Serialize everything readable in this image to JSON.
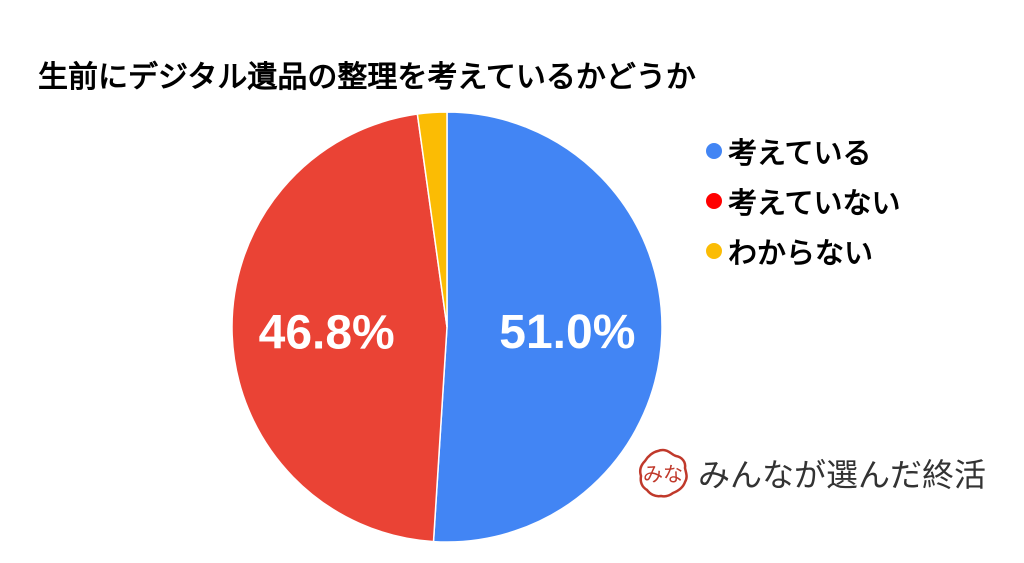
{
  "chart_data": {
    "type": "pie",
    "title": "生前にデジタル遺品の整理を考えているかどうか",
    "categories": [
      "考えている",
      "考えていない",
      "わからない"
    ],
    "values": [
      51.0,
      46.8,
      2.2
    ],
    "data_labels": [
      "51.0%",
      "46.8%",
      ""
    ],
    "colors": [
      "#4285F4",
      "#EA4335",
      "#FBBC04"
    ],
    "legend_colors": [
      "#4285F4",
      "#FF0000",
      "#FBBC04"
    ],
    "start_angle_deg": 0,
    "direction": "clockwise",
    "legend_position": "right"
  },
  "watermark": {
    "text": "みんなが選んだ終活",
    "seal_text": "みな",
    "seal_color": "#C0392B"
  }
}
